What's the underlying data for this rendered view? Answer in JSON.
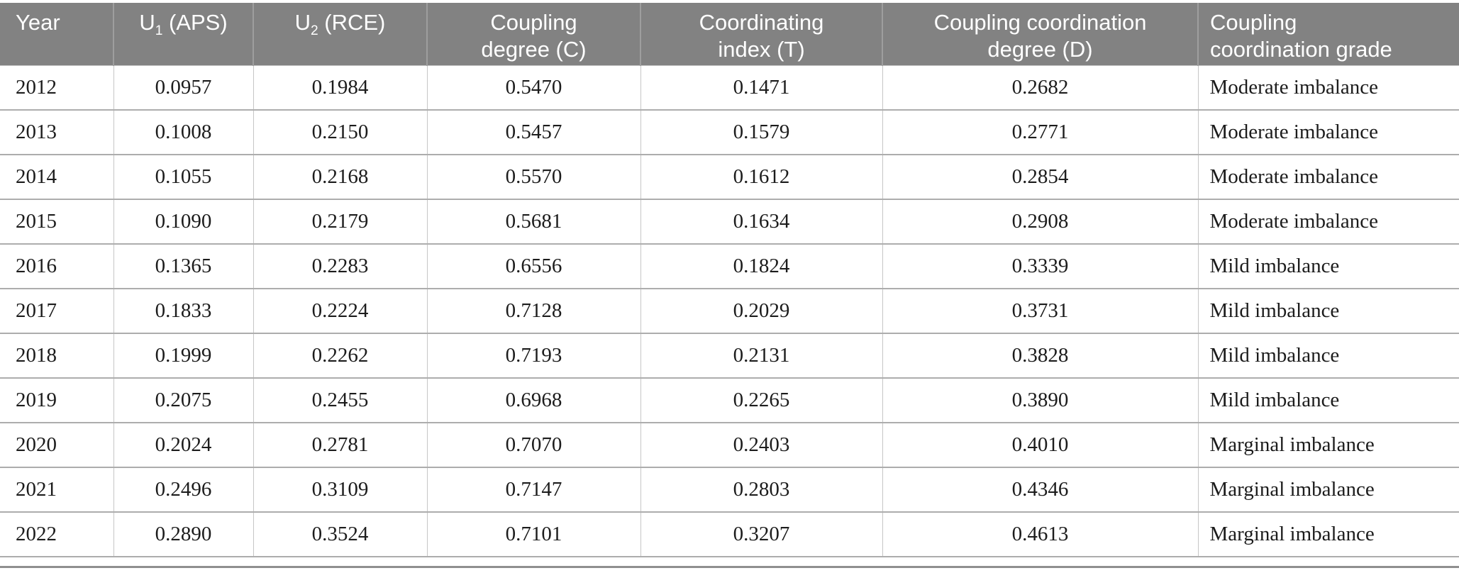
{
  "table": {
    "columns": [
      {
        "id": "year",
        "label": "Year"
      },
      {
        "id": "u1",
        "label_pre": "U",
        "label_sub": "1",
        "label_post": " (APS)"
      },
      {
        "id": "u2",
        "label_pre": "U",
        "label_sub": "2",
        "label_post": " (RCE)"
      },
      {
        "id": "c",
        "label_line1": "Coupling",
        "label_line2": "degree (C)"
      },
      {
        "id": "t",
        "label_line1": "Coordinating",
        "label_line2": "index (T)"
      },
      {
        "id": "d",
        "label_line1": "Coupling coordination",
        "label_line2": "degree (D)"
      },
      {
        "id": "grade",
        "label_line1": "Coupling",
        "label_line2": "coordination grade"
      }
    ],
    "rows": [
      {
        "year": "2012",
        "u1": "0.0957",
        "u2": "0.1984",
        "c": "0.5470",
        "t": "0.1471",
        "d": "0.2682",
        "grade": "Moderate imbalance"
      },
      {
        "year": "2013",
        "u1": "0.1008",
        "u2": "0.2150",
        "c": "0.5457",
        "t": "0.1579",
        "d": "0.2771",
        "grade": "Moderate imbalance"
      },
      {
        "year": "2014",
        "u1": "0.1055",
        "u2": "0.2168",
        "c": "0.5570",
        "t": "0.1612",
        "d": "0.2854",
        "grade": "Moderate imbalance"
      },
      {
        "year": "2015",
        "u1": "0.1090",
        "u2": "0.2179",
        "c": "0.5681",
        "t": "0.1634",
        "d": "0.2908",
        "grade": "Moderate imbalance"
      },
      {
        "year": "2016",
        "u1": "0.1365",
        "u2": "0.2283",
        "c": "0.6556",
        "t": "0.1824",
        "d": "0.3339",
        "grade": "Mild imbalance"
      },
      {
        "year": "2017",
        "u1": "0.1833",
        "u2": "0.2224",
        "c": "0.7128",
        "t": "0.2029",
        "d": "0.3731",
        "grade": "Mild imbalance"
      },
      {
        "year": "2018",
        "u1": "0.1999",
        "u2": "0.2262",
        "c": "0.7193",
        "t": "0.2131",
        "d": "0.3828",
        "grade": "Mild imbalance"
      },
      {
        "year": "2019",
        "u1": "0.2075",
        "u2": "0.2455",
        "c": "0.6968",
        "t": "0.2265",
        "d": "0.3890",
        "grade": "Mild imbalance"
      },
      {
        "year": "2020",
        "u1": "0.2024",
        "u2": "0.2781",
        "c": "0.7070",
        "t": "0.2403",
        "d": "0.4010",
        "grade": "Marginal imbalance"
      },
      {
        "year": "2021",
        "u1": "0.2496",
        "u2": "0.3109",
        "c": "0.7147",
        "t": "0.2803",
        "d": "0.4346",
        "grade": "Marginal imbalance"
      },
      {
        "year": "2022",
        "u1": "0.2890",
        "u2": "0.3524",
        "c": "0.7101",
        "t": "0.3207",
        "d": "0.4613",
        "grade": "Marginal imbalance"
      }
    ]
  },
  "colors": {
    "header_bg": "#828282",
    "header_text": "#ffffff",
    "header_divider": "#9e9e9e",
    "row_divider_horizontal": "#adadad",
    "row_divider_vertical": "#c6c6c6",
    "body_text": "#1c1c1c",
    "bottom_rule": "#8f8f8f"
  }
}
